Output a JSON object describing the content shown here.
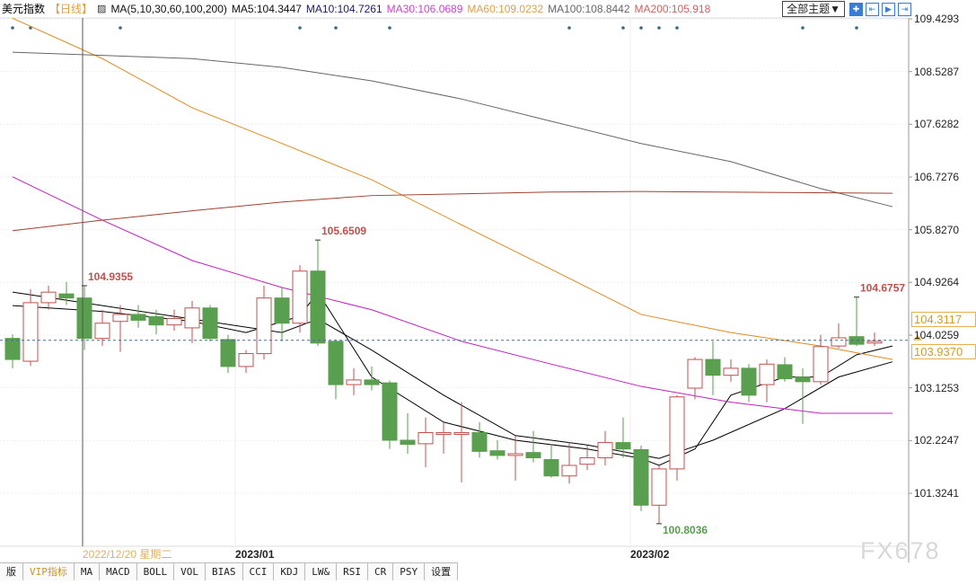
{
  "header": {
    "symbol": "美元指数",
    "period": "【日线】",
    "ma_label": "MA(5,10,30,60,100,200)",
    "ma5": "MA5:104.3447",
    "ma10": "MA10:104.7261",
    "ma30": "MA30:106.0689",
    "ma60": "MA60:109.0232",
    "ma100": "MA100:108.8442",
    "ma200": "MA200:105.918",
    "theme_button": "全部主题▼"
  },
  "colors": {
    "up": "#c0504d",
    "down": "#5a9e4f",
    "ma5": "#000000",
    "ma10": "#000000",
    "ma30": "#c020c0",
    "ma60": "#e08a1e",
    "ma100": "#666666",
    "ma200": "#a04030"
  },
  "chart_data": {
    "type": "candlestick",
    "title": "美元指数 日线",
    "ylim": [
      101.3241,
      109.4293
    ],
    "y_ticks": [
      "109.4293",
      "108.5287",
      "107.6282",
      "106.7276",
      "105.8270",
      "104.9264",
      "104.0259",
      "103.1253",
      "102.2247",
      "101.3241"
    ],
    "x_labels": [
      {
        "index": 13,
        "text": "2023/01"
      },
      {
        "index": 35,
        "text": "2023/02"
      }
    ],
    "crosshair": {
      "index": 4,
      "date": "2022/12/20 星期二"
    },
    "current_price": "103.9370",
    "hover_price": "104.3117",
    "annotations": [
      {
        "index": 4,
        "text": "104.9355",
        "at": "high"
      },
      {
        "index": 17,
        "text": "105.6509",
        "at": "high"
      },
      {
        "index": 36,
        "text": "100.8036",
        "at": "low"
      },
      {
        "index": 47,
        "text": "104.6757",
        "at": "high"
      }
    ],
    "ohlc": [
      [
        103.97,
        103.61,
        104.04,
        103.46
      ],
      [
        103.58,
        104.58,
        104.81,
        103.5
      ],
      [
        104.58,
        104.76,
        104.87,
        104.46
      ],
      [
        104.73,
        104.66,
        104.9355,
        104.54
      ],
      [
        104.66,
        103.97,
        104.87,
        103.77
      ],
      [
        103.97,
        104.23,
        104.46,
        103.84
      ],
      [
        104.26,
        104.38,
        104.54,
        103.74
      ],
      [
        104.38,
        104.28,
        104.54,
        104.15
      ],
      [
        104.34,
        104.2,
        104.46,
        104.04
      ],
      [
        104.2,
        104.31,
        104.46,
        104.1
      ],
      [
        104.15,
        104.49,
        104.61,
        103.89
      ],
      [
        104.49,
        103.97,
        104.54,
        103.92
      ],
      [
        103.95,
        103.49,
        104.03,
        103.38
      ],
      [
        103.49,
        103.71,
        103.77,
        103.38
      ],
      [
        103.71,
        104.66,
        104.87,
        103.61
      ],
      [
        104.66,
        104.23,
        104.84,
        103.92
      ],
      [
        104.23,
        105.12,
        105.22,
        104.07
      ],
      [
        105.12,
        103.89,
        105.6509,
        103.84
      ],
      [
        103.92,
        103.18,
        103.95,
        102.93
      ],
      [
        103.18,
        103.26,
        103.46,
        103.0
      ],
      [
        103.26,
        103.18,
        103.49,
        103.08
      ],
      [
        103.21,
        102.23,
        103.25,
        102.08
      ],
      [
        102.23,
        102.16,
        102.69,
        102.0
      ],
      [
        102.17,
        102.36,
        102.62,
        101.77
      ],
      [
        102.33,
        102.36,
        102.54,
        102.0
      ],
      [
        102.33,
        102.36,
        102.88,
        101.51
      ],
      [
        102.36,
        102.04,
        102.54,
        101.93
      ],
      [
        102.05,
        101.97,
        102.23,
        101.9
      ],
      [
        101.97,
        102.0,
        102.31,
        101.54
      ],
      [
        102.02,
        101.93,
        102.39,
        101.85
      ],
      [
        101.9,
        101.62,
        102.16,
        101.59
      ],
      [
        101.62,
        101.8,
        102.2,
        101.49
      ],
      [
        101.82,
        101.93,
        102.14,
        101.72
      ],
      [
        101.93,
        102.19,
        102.39,
        101.8
      ],
      [
        102.19,
        102.08,
        102.62,
        101.93
      ],
      [
        102.07,
        101.12,
        102.14,
        101.02
      ],
      [
        101.12,
        101.74,
        101.8,
        100.8036
      ],
      [
        101.74,
        102.97,
        103.0,
        101.54
      ],
      [
        103.12,
        103.61,
        103.65,
        102.93
      ],
      [
        103.61,
        103.34,
        103.92,
        103.0
      ],
      [
        103.34,
        103.46,
        103.61,
        103.23
      ],
      [
        103.46,
        103.0,
        103.53,
        102.88
      ],
      [
        103.18,
        103.53,
        103.61,
        102.88
      ],
      [
        103.52,
        103.28,
        103.65,
        103.23
      ],
      [
        103.31,
        103.23,
        103.46,
        102.51
      ],
      [
        103.23,
        103.83,
        104.03,
        103.18
      ],
      [
        103.84,
        103.98,
        104.23,
        103.8
      ],
      [
        104.0,
        103.87,
        104.6757,
        103.84
      ],
      [
        103.89,
        103.92,
        104.07,
        103.84
      ]
    ],
    "series": [
      {
        "name": "MA5",
        "points": [
          [
            0,
            104.53
          ],
          [
            5,
            104.43
          ],
          [
            10,
            104.26
          ],
          [
            13,
            104.07
          ],
          [
            16,
            104.35
          ],
          [
            17,
            104.76
          ],
          [
            20,
            103.31
          ],
          [
            24,
            102.54
          ],
          [
            28,
            102.23
          ],
          [
            32,
            102.08
          ],
          [
            35,
            101.92
          ],
          [
            36,
            101.8
          ],
          [
            38,
            102.08
          ],
          [
            40,
            103.0
          ],
          [
            43,
            103.31
          ],
          [
            45,
            103.31
          ],
          [
            47,
            103.69
          ],
          [
            49,
            103.84
          ]
        ]
      },
      {
        "name": "MA10",
        "points": [
          [
            0,
            104.76
          ],
          [
            5,
            104.53
          ],
          [
            10,
            104.3
          ],
          [
            15,
            104.07
          ],
          [
            17,
            104.3
          ],
          [
            20,
            103.77
          ],
          [
            24,
            103.0
          ],
          [
            28,
            102.31
          ],
          [
            32,
            102.15
          ],
          [
            36,
            101.92
          ],
          [
            39,
            102.23
          ],
          [
            43,
            102.77
          ],
          [
            46,
            103.31
          ],
          [
            49,
            103.57
          ]
        ]
      },
      {
        "name": "MA30",
        "points": [
          [
            0,
            106.73
          ],
          [
            5,
            105.99
          ],
          [
            10,
            105.3
          ],
          [
            15,
            104.84
          ],
          [
            20,
            104.46
          ],
          [
            25,
            103.92
          ],
          [
            30,
            103.53
          ],
          [
            35,
            103.15
          ],
          [
            40,
            102.88
          ],
          [
            45,
            102.69
          ],
          [
            49,
            102.69
          ]
        ]
      },
      {
        "name": "MA60",
        "points": [
          [
            0,
            109.44
          ],
          [
            5,
            108.75
          ],
          [
            10,
            107.91
          ],
          [
            15,
            107.3
          ],
          [
            20,
            106.68
          ],
          [
            25,
            105.91
          ],
          [
            30,
            105.15
          ],
          [
            35,
            104.38
          ],
          [
            40,
            104.07
          ],
          [
            45,
            103.84
          ],
          [
            49,
            103.61
          ]
        ]
      },
      {
        "name": "MA100",
        "points": [
          [
            0,
            108.86
          ],
          [
            10,
            108.75
          ],
          [
            15,
            108.6
          ],
          [
            20,
            108.37
          ],
          [
            25,
            108.06
          ],
          [
            30,
            107.68
          ],
          [
            35,
            107.3
          ],
          [
            40,
            106.99
          ],
          [
            45,
            106.53
          ],
          [
            49,
            106.22
          ]
        ]
      },
      {
        "name": "MA200",
        "points": [
          [
            0,
            105.81
          ],
          [
            5,
            105.99
          ],
          [
            10,
            106.15
          ],
          [
            15,
            106.3
          ],
          [
            20,
            106.41
          ],
          [
            30,
            106.47
          ],
          [
            35,
            106.48
          ],
          [
            49,
            106.45
          ]
        ]
      }
    ],
    "event_markers": [
      0,
      1,
      6,
      16,
      18,
      21,
      31,
      34,
      35,
      36,
      37,
      44,
      47
    ]
  },
  "tabs": [
    "版",
    "VIP指标",
    "MA",
    "MACD",
    "BOLL",
    "VOL",
    "BIAS",
    "CCI",
    "KDJ",
    "LW&",
    "RSI",
    "CR",
    "PSY",
    "设置"
  ],
  "watermark": "FX678"
}
